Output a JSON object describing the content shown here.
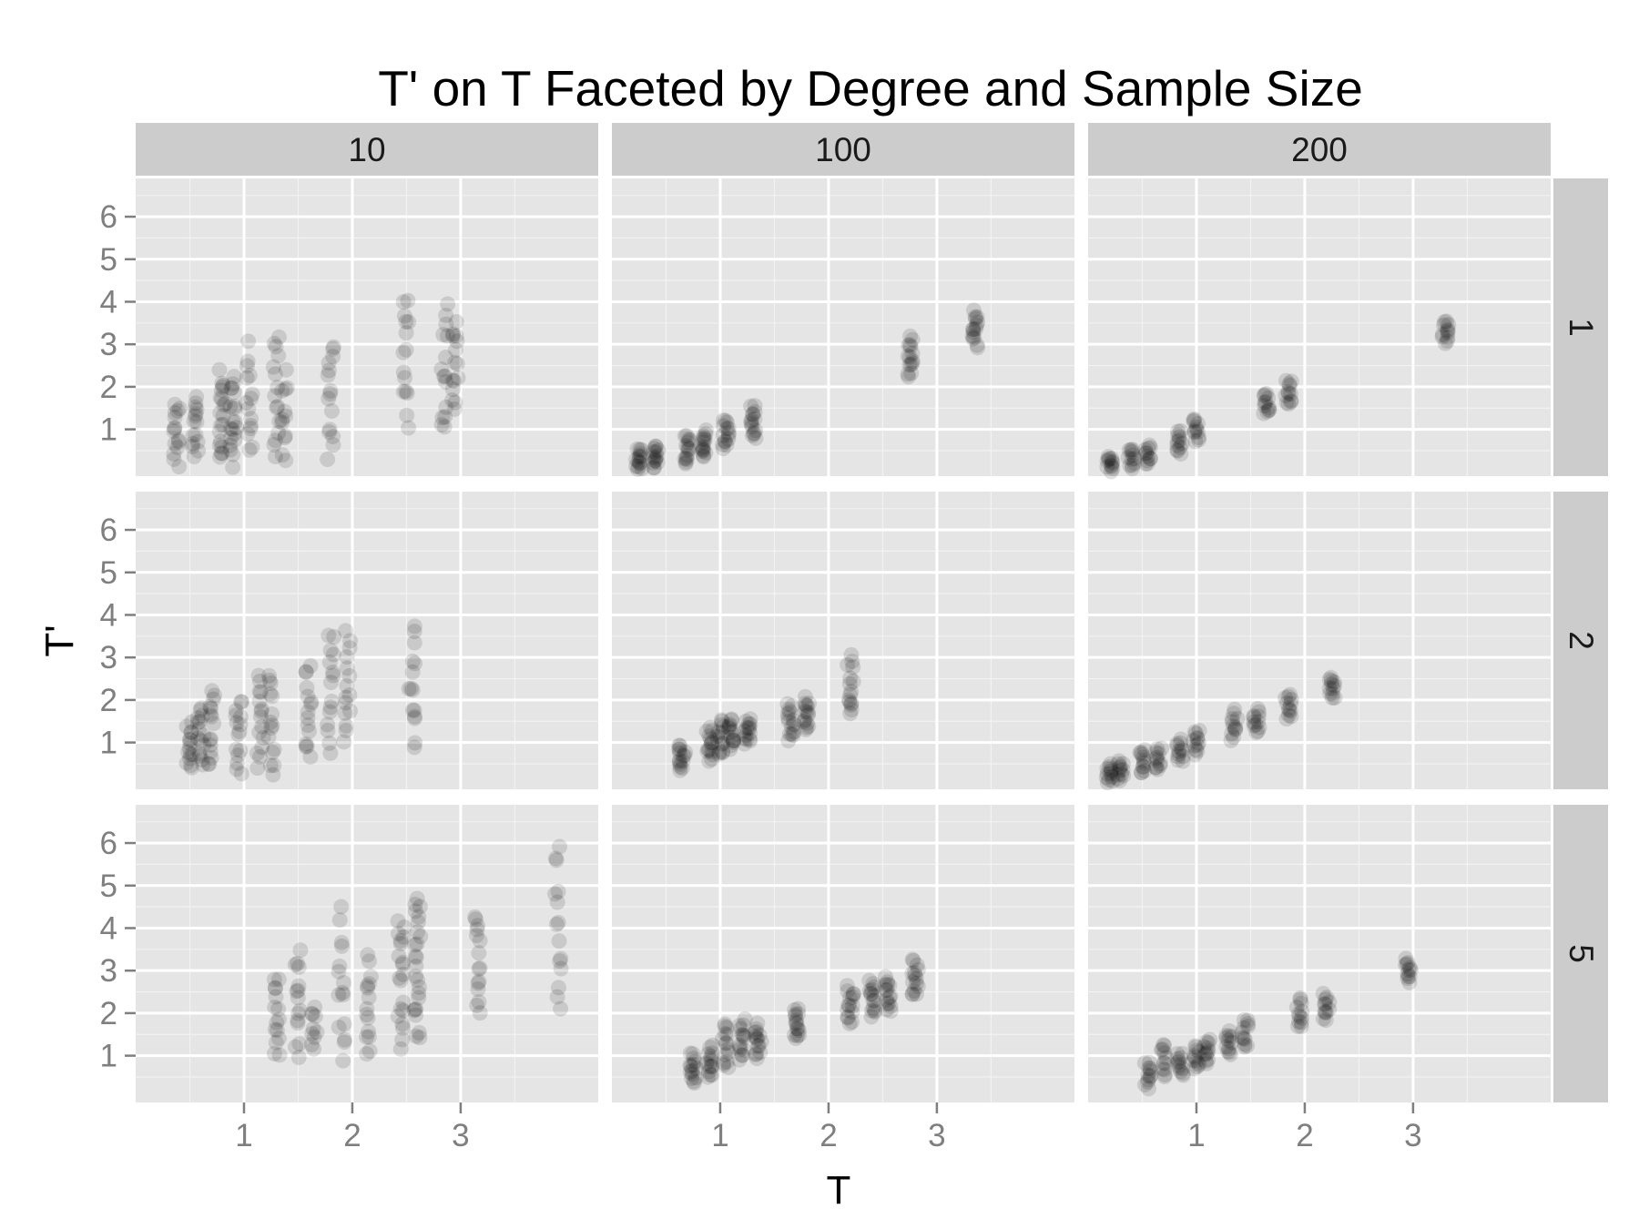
{
  "chart_data": {
    "type": "scatter",
    "title": "T' on T Faceted by Degree and Sample Size",
    "xlabel": "T",
    "ylabel": "T'",
    "xlim": [
      0.0,
      4.27
    ],
    "ylim": [
      -0.1,
      6.9
    ],
    "x_ticks": [
      1,
      2,
      3
    ],
    "y_ticks": [
      1,
      2,
      3,
      4,
      5,
      6
    ],
    "grid": true,
    "facet_columns": [
      "10",
      "100",
      "200"
    ],
    "facet_rows": [
      "1",
      "2",
      "5"
    ],
    "point_color": "#000000",
    "point_alpha": 0.12,
    "panels": [
      {
        "col": "10",
        "row": "1",
        "clusters": [
          {
            "x": 0.38,
            "y_min": 0.1,
            "y_max": 1.7,
            "n": 15
          },
          {
            "x": 0.55,
            "y_min": 0.1,
            "y_max": 2.0,
            "n": 15
          },
          {
            "x": 0.8,
            "y_min": 0.1,
            "y_max": 2.5,
            "n": 20
          },
          {
            "x": 0.9,
            "y_min": 0.1,
            "y_max": 2.3,
            "n": 20
          },
          {
            "x": 1.05,
            "y_min": 0.1,
            "y_max": 3.2,
            "n": 15
          },
          {
            "x": 1.3,
            "y_min": 0.1,
            "y_max": 3.4,
            "n": 15
          },
          {
            "x": 1.37,
            "y_min": 0.1,
            "y_max": 2.5,
            "n": 12
          },
          {
            "x": 1.8,
            "y_min": 0.2,
            "y_max": 3.4,
            "n": 15
          },
          {
            "x": 2.5,
            "y_min": 0.9,
            "y_max": 4.5,
            "n": 15
          },
          {
            "x": 2.85,
            "y_min": 0.6,
            "y_max": 4.2,
            "n": 15
          },
          {
            "x": 2.95,
            "y_min": 1.2,
            "y_max": 3.7,
            "n": 15
          }
        ]
      },
      {
        "col": "100",
        "row": "1",
        "clusters": [
          {
            "x": 0.25,
            "y_min": 0.0,
            "y_max": 0.6,
            "n": 15
          },
          {
            "x": 0.4,
            "y_min": 0.05,
            "y_max": 0.7,
            "n": 15
          },
          {
            "x": 0.7,
            "y_min": 0.1,
            "y_max": 0.9,
            "n": 15
          },
          {
            "x": 0.85,
            "y_min": 0.25,
            "y_max": 1.05,
            "n": 15
          },
          {
            "x": 1.05,
            "y_min": 0.55,
            "y_max": 1.25,
            "n": 15
          },
          {
            "x": 1.3,
            "y_min": 0.75,
            "y_max": 1.6,
            "n": 15
          },
          {
            "x": 2.75,
            "y_min": 2.2,
            "y_max": 3.2,
            "n": 15
          },
          {
            "x": 3.35,
            "y_min": 2.9,
            "y_max": 3.8,
            "n": 15
          }
        ]
      },
      {
        "col": "200",
        "row": "1",
        "clusters": [
          {
            "x": 0.2,
            "y_min": 0.0,
            "y_max": 0.4,
            "n": 12
          },
          {
            "x": 0.4,
            "y_min": 0.05,
            "y_max": 0.6,
            "n": 12
          },
          {
            "x": 0.55,
            "y_min": 0.1,
            "y_max": 0.7,
            "n": 12
          },
          {
            "x": 0.85,
            "y_min": 0.4,
            "y_max": 1.0,
            "n": 12
          },
          {
            "x": 1.0,
            "y_min": 0.7,
            "y_max": 1.3,
            "n": 12
          },
          {
            "x": 1.65,
            "y_min": 1.3,
            "y_max": 1.9,
            "n": 12
          },
          {
            "x": 1.85,
            "y_min": 1.5,
            "y_max": 2.2,
            "n": 12
          },
          {
            "x": 3.3,
            "y_min": 3.0,
            "y_max": 3.6,
            "n": 12
          }
        ]
      },
      {
        "col": "10",
        "row": "2",
        "clusters": [
          {
            "x": 0.5,
            "y_min": 0.3,
            "y_max": 1.5,
            "n": 15
          },
          {
            "x": 0.6,
            "y_min": 0.4,
            "y_max": 2.0,
            "n": 15
          },
          {
            "x": 0.7,
            "y_min": 0.2,
            "y_max": 2.5,
            "n": 15
          },
          {
            "x": 0.95,
            "y_min": 0.2,
            "y_max": 2.2,
            "n": 15
          },
          {
            "x": 1.15,
            "y_min": 0.3,
            "y_max": 2.8,
            "n": 15
          },
          {
            "x": 1.25,
            "y_min": 0.1,
            "y_max": 2.8,
            "n": 15
          },
          {
            "x": 1.6,
            "y_min": 0.4,
            "y_max": 3.0,
            "n": 15
          },
          {
            "x": 1.8,
            "y_min": 0.6,
            "y_max": 3.8,
            "n": 15
          },
          {
            "x": 1.95,
            "y_min": 0.8,
            "y_max": 3.7,
            "n": 15
          },
          {
            "x": 2.55,
            "y_min": 0.8,
            "y_max": 3.8,
            "n": 15
          }
        ]
      },
      {
        "col": "100",
        "row": "2",
        "clusters": [
          {
            "x": 0.65,
            "y_min": 0.3,
            "y_max": 1.0,
            "n": 15
          },
          {
            "x": 0.9,
            "y_min": 0.5,
            "y_max": 1.4,
            "n": 15
          },
          {
            "x": 1.0,
            "y_min": 0.6,
            "y_max": 1.6,
            "n": 15
          },
          {
            "x": 1.1,
            "y_min": 0.8,
            "y_max": 1.6,
            "n": 15
          },
          {
            "x": 1.25,
            "y_min": 0.9,
            "y_max": 1.6,
            "n": 15
          },
          {
            "x": 1.65,
            "y_min": 1.0,
            "y_max": 2.0,
            "n": 15
          },
          {
            "x": 1.8,
            "y_min": 1.2,
            "y_max": 2.1,
            "n": 15
          },
          {
            "x": 2.2,
            "y_min": 1.5,
            "y_max": 3.1,
            "n": 15
          }
        ]
      },
      {
        "col": "200",
        "row": "2",
        "clusters": [
          {
            "x": 0.2,
            "y_min": 0.05,
            "y_max": 0.5,
            "n": 12
          },
          {
            "x": 0.3,
            "y_min": 0.1,
            "y_max": 0.6,
            "n": 12
          },
          {
            "x": 0.5,
            "y_min": 0.2,
            "y_max": 0.9,
            "n": 12
          },
          {
            "x": 0.65,
            "y_min": 0.3,
            "y_max": 0.9,
            "n": 12
          },
          {
            "x": 0.85,
            "y_min": 0.5,
            "y_max": 1.1,
            "n": 12
          },
          {
            "x": 1.0,
            "y_min": 0.7,
            "y_max": 1.3,
            "n": 12
          },
          {
            "x": 1.35,
            "y_min": 1.0,
            "y_max": 1.8,
            "n": 12
          },
          {
            "x": 1.55,
            "y_min": 1.2,
            "y_max": 1.8,
            "n": 12
          },
          {
            "x": 1.85,
            "y_min": 1.5,
            "y_max": 2.2,
            "n": 12
          },
          {
            "x": 2.25,
            "y_min": 2.0,
            "y_max": 2.6,
            "n": 12
          }
        ]
      },
      {
        "col": "10",
        "row": "5",
        "clusters": [
          {
            "x": 1.3,
            "y_min": 0.8,
            "y_max": 3.1,
            "n": 15
          },
          {
            "x": 1.5,
            "y_min": 0.9,
            "y_max": 3.6,
            "n": 15
          },
          {
            "x": 1.65,
            "y_min": 1.0,
            "y_max": 2.3,
            "n": 10
          },
          {
            "x": 1.9,
            "y_min": 0.7,
            "y_max": 4.6,
            "n": 15
          },
          {
            "x": 2.15,
            "y_min": 0.7,
            "y_max": 3.6,
            "n": 15
          },
          {
            "x": 2.45,
            "y_min": 1.0,
            "y_max": 4.5,
            "n": 20
          },
          {
            "x": 2.6,
            "y_min": 1.0,
            "y_max": 5.1,
            "n": 25
          },
          {
            "x": 3.15,
            "y_min": 1.7,
            "y_max": 4.6,
            "n": 15
          },
          {
            "x": 3.9,
            "y_min": 1.8,
            "y_max": 6.3,
            "n": 15
          }
        ]
      },
      {
        "col": "100",
        "row": "5",
        "clusters": [
          {
            "x": 0.75,
            "y_min": 0.3,
            "y_max": 1.1,
            "n": 15
          },
          {
            "x": 0.9,
            "y_min": 0.4,
            "y_max": 1.3,
            "n": 15
          },
          {
            "x": 1.05,
            "y_min": 0.6,
            "y_max": 1.9,
            "n": 15
          },
          {
            "x": 1.2,
            "y_min": 0.8,
            "y_max": 1.9,
            "n": 15
          },
          {
            "x": 1.35,
            "y_min": 0.9,
            "y_max": 1.8,
            "n": 15
          },
          {
            "x": 1.7,
            "y_min": 1.3,
            "y_max": 2.2,
            "n": 15
          },
          {
            "x": 2.2,
            "y_min": 1.7,
            "y_max": 2.7,
            "n": 15
          },
          {
            "x": 2.4,
            "y_min": 1.9,
            "y_max": 2.8,
            "n": 15
          },
          {
            "x": 2.55,
            "y_min": 2.0,
            "y_max": 2.9,
            "n": 15
          },
          {
            "x": 2.8,
            "y_min": 2.3,
            "y_max": 3.3,
            "n": 15
          }
        ]
      },
      {
        "col": "200",
        "row": "5",
        "clusters": [
          {
            "x": 0.55,
            "y_min": 0.2,
            "y_max": 0.9,
            "n": 12
          },
          {
            "x": 0.7,
            "y_min": 0.4,
            "y_max": 1.4,
            "n": 12
          },
          {
            "x": 0.85,
            "y_min": 0.5,
            "y_max": 1.1,
            "n": 12
          },
          {
            "x": 1.0,
            "y_min": 0.6,
            "y_max": 1.3,
            "n": 12
          },
          {
            "x": 1.1,
            "y_min": 0.8,
            "y_max": 1.4,
            "n": 12
          },
          {
            "x": 1.3,
            "y_min": 1.0,
            "y_max": 1.6,
            "n": 12
          },
          {
            "x": 1.45,
            "y_min": 1.1,
            "y_max": 1.9,
            "n": 12
          },
          {
            "x": 1.95,
            "y_min": 1.6,
            "y_max": 2.4,
            "n": 12
          },
          {
            "x": 2.2,
            "y_min": 1.8,
            "y_max": 2.5,
            "n": 12
          },
          {
            "x": 2.95,
            "y_min": 2.7,
            "y_max": 3.3,
            "n": 12
          }
        ]
      }
    ]
  }
}
